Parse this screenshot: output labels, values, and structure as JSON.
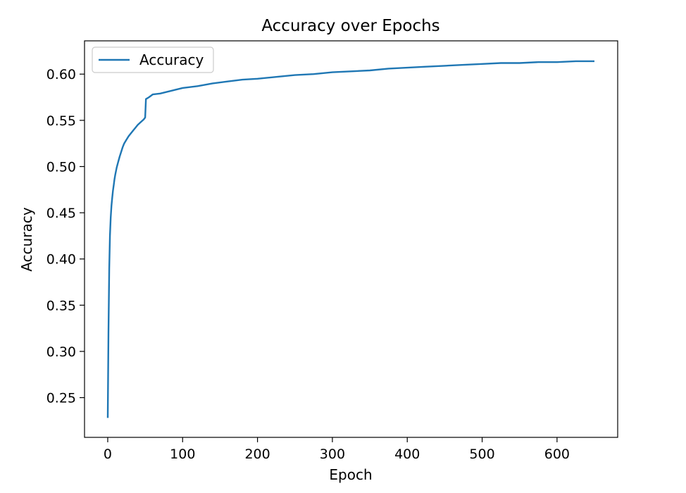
{
  "chart_data": {
    "type": "line",
    "title": "Accuracy over Epochs",
    "xlabel": "Epoch",
    "ylabel": "Accuracy",
    "xlim": [
      -31,
      681
    ],
    "ylim": [
      0.207,
      0.636
    ],
    "xticks": [
      0,
      100,
      200,
      300,
      400,
      500,
      600
    ],
    "yticks": [
      0.25,
      0.3,
      0.35,
      0.4,
      0.45,
      0.5,
      0.55,
      0.6
    ],
    "grid": false,
    "legend": "top-left",
    "series": [
      {
        "name": "Accuracy",
        "color": "#1f77b4",
        "points": [
          [
            0,
            0.228
          ],
          [
            1,
            0.32
          ],
          [
            2,
            0.39
          ],
          [
            3,
            0.425
          ],
          [
            4,
            0.445
          ],
          [
            5,
            0.458
          ],
          [
            6,
            0.466
          ],
          [
            7,
            0.474
          ],
          [
            8,
            0.48
          ],
          [
            9,
            0.486
          ],
          [
            10,
            0.491
          ],
          [
            12,
            0.499
          ],
          [
            14,
            0.505
          ],
          [
            16,
            0.511
          ],
          [
            18,
            0.516
          ],
          [
            20,
            0.521
          ],
          [
            22,
            0.525
          ],
          [
            25,
            0.529
          ],
          [
            28,
            0.533
          ],
          [
            31,
            0.536
          ],
          [
            34,
            0.539
          ],
          [
            37,
            0.542
          ],
          [
            40,
            0.545
          ],
          [
            44,
            0.548
          ],
          [
            48,
            0.551
          ],
          [
            50,
            0.553
          ],
          [
            51,
            0.573
          ],
          [
            55,
            0.575
          ],
          [
            60,
            0.578
          ],
          [
            70,
            0.579
          ],
          [
            80,
            0.581
          ],
          [
            90,
            0.583
          ],
          [
            100,
            0.585
          ],
          [
            120,
            0.587
          ],
          [
            140,
            0.59
          ],
          [
            160,
            0.592
          ],
          [
            180,
            0.594
          ],
          [
            200,
            0.595
          ],
          [
            225,
            0.597
          ],
          [
            250,
            0.599
          ],
          [
            275,
            0.6
          ],
          [
            300,
            0.602
          ],
          [
            325,
            0.603
          ],
          [
            350,
            0.604
          ],
          [
            375,
            0.606
          ],
          [
            400,
            0.607
          ],
          [
            425,
            0.608
          ],
          [
            450,
            0.609
          ],
          [
            475,
            0.61
          ],
          [
            500,
            0.611
          ],
          [
            525,
            0.612
          ],
          [
            550,
            0.612
          ],
          [
            575,
            0.613
          ],
          [
            600,
            0.613
          ],
          [
            625,
            0.614
          ],
          [
            650,
            0.614
          ]
        ]
      }
    ]
  }
}
